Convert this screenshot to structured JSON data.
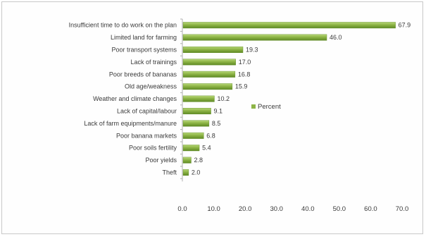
{
  "chart_data": {
    "type": "bar",
    "orientation": "horizontal",
    "categories": [
      "Insufficient time to do work on the plan",
      "Limited land for farming",
      "Poor transport systems",
      "Lack of trainings",
      "Poor breeds  of bananas",
      "Old age/weakness",
      "Weather and climate changes",
      "Lack of capital/labour",
      "Lack of farm equipments/manure",
      "Poor banana markets",
      "Poor soils fertility",
      "Poor yields",
      "Theft"
    ],
    "series": [
      {
        "name": "Percent",
        "values": [
          67.9,
          46.0,
          19.3,
          17.0,
          16.8,
          15.9,
          10.2,
          9.1,
          8.5,
          6.8,
          5.4,
          2.8,
          2.0
        ],
        "value_labels": [
          "67.9",
          "46.0",
          "19.3",
          "17.0",
          "16.8",
          "15.9",
          "10.2",
          "9.1",
          "8.5",
          "6.8",
          "5.4",
          "2.8",
          "2.0"
        ]
      }
    ],
    "x_ticks": [
      "0.0",
      "10.0",
      "20.0",
      "30.0",
      "40.0",
      "50.0",
      "60.0",
      "70.0"
    ],
    "xlim": [
      0,
      70
    ],
    "legend_position": "right",
    "grid": false,
    "colors": {
      "bar": "#8db446",
      "bar_light": "#b8d878",
      "bar_dark": "#5f8a24",
      "axis": "#b0b0b0"
    }
  }
}
